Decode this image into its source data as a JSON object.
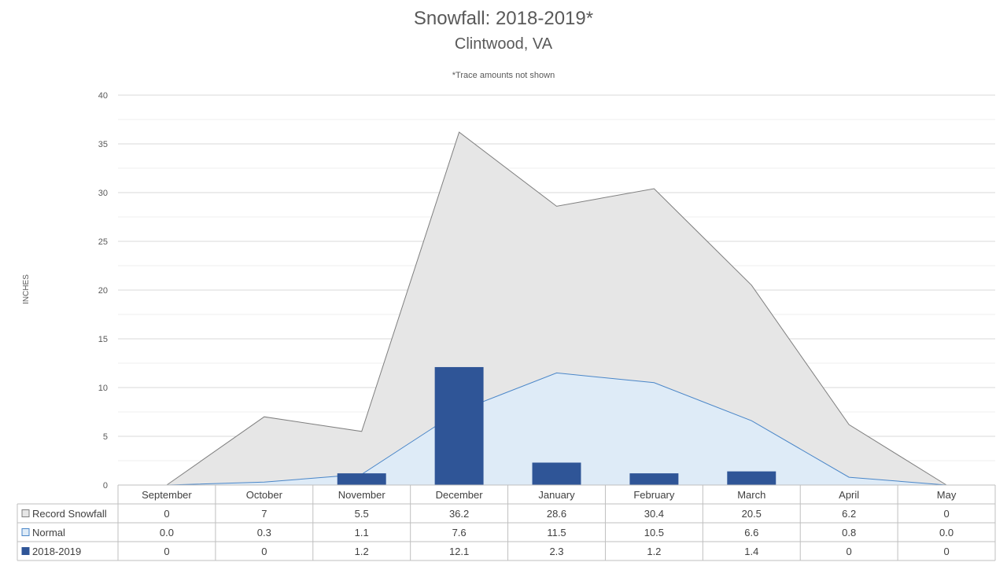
{
  "chart_data": {
    "type": "area",
    "title": "Snowfall: 2018-2019*",
    "subtitle": "Clintwood, VA",
    "note": "*Trace amounts not shown",
    "ylabel": "INCHES",
    "ylim": [
      0,
      40
    ],
    "yticks": [
      0,
      5,
      10,
      15,
      20,
      25,
      30,
      35,
      40
    ],
    "grid": true,
    "legend": "data-table",
    "categories": [
      "September",
      "October",
      "November",
      "December",
      "January",
      "February",
      "March",
      "April",
      "May"
    ],
    "series": [
      {
        "name": "Record Snowfall",
        "kind": "area",
        "color": "#e6e6e6",
        "line_color": "#7f7f7f",
        "values": [
          0,
          7,
          5.5,
          36.2,
          28.6,
          30.4,
          20.5,
          6.2,
          0
        ],
        "labels": [
          "0",
          "7",
          "5.5",
          "36.2",
          "28.6",
          "30.4",
          "20.5",
          "6.2",
          "0"
        ]
      },
      {
        "name": "Normal",
        "kind": "area",
        "color": "#deebf7",
        "line_color": "#4a86c8",
        "values": [
          0.0,
          0.3,
          1.1,
          7.6,
          11.5,
          10.5,
          6.6,
          0.8,
          0.0
        ],
        "labels": [
          "0.0",
          "0.3",
          "1.1",
          "7.6",
          "11.5",
          "10.5",
          "6.6",
          "0.8",
          "0.0"
        ]
      },
      {
        "name": "2018-2019",
        "kind": "bar",
        "color": "#2f5597",
        "values": [
          0,
          0,
          1.2,
          12.1,
          2.3,
          1.2,
          1.4,
          0,
          0
        ],
        "labels": [
          "0",
          "0",
          "1.2",
          "12.1",
          "2.3",
          "1.2",
          "1.4",
          "0",
          "0"
        ]
      }
    ]
  }
}
